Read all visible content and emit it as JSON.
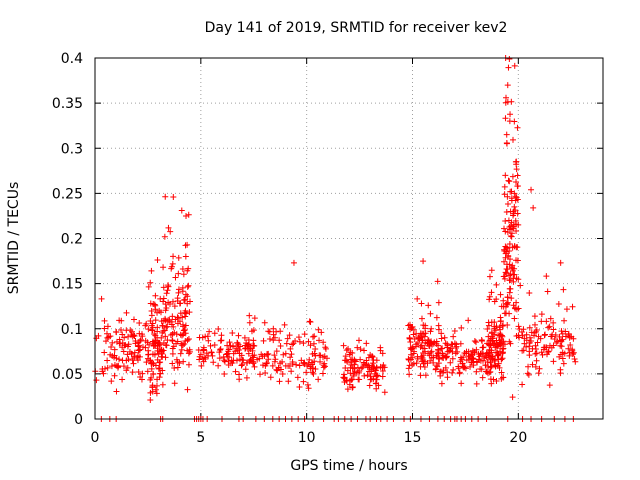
{
  "chart_data": {
    "type": "scatter",
    "title": "Day 141 of 2019, SRMTID for receiver kev2",
    "xlabel": "GPS time / hours",
    "ylabel": "SRMTID / TECUs",
    "xlim": [
      0,
      24
    ],
    "ylim": [
      0,
      0.4
    ],
    "x_ticks": [
      "0",
      "5",
      "10",
      "15",
      "20"
    ],
    "y_ticks": [
      "0",
      "0.05",
      "0.1",
      "0.15",
      "0.2",
      "0.25",
      "0.3",
      "0.35",
      "0.4"
    ],
    "grid": true,
    "marker": "plus",
    "series_color": "#ff0000",
    "segments": [
      {
        "x_start": 0.0,
        "x_end": 2.6,
        "base": 0.075,
        "spread": 0.035,
        "density": 120
      },
      {
        "x_start": 2.6,
        "x_end": 3.2,
        "base": 0.08,
        "spread": 0.05,
        "density": 90
      },
      {
        "x_start": 3.2,
        "x_end": 4.5,
        "base": 0.11,
        "spread": 0.07,
        "density": 130
      },
      {
        "x_start": 4.9,
        "x_end": 7.6,
        "base": 0.07,
        "spread": 0.025,
        "density": 120
      },
      {
        "x_start": 7.6,
        "x_end": 11.0,
        "base": 0.068,
        "spread": 0.03,
        "density": 120
      },
      {
        "x_start": 11.7,
        "x_end": 13.7,
        "base": 0.055,
        "spread": 0.022,
        "density": 110
      },
      {
        "x_start": 14.8,
        "x_end": 16.3,
        "base": 0.078,
        "spread": 0.03,
        "density": 120
      },
      {
        "x_start": 16.3,
        "x_end": 18.5,
        "base": 0.07,
        "spread": 0.025,
        "density": 110
      },
      {
        "x_start": 18.5,
        "x_end": 19.3,
        "base": 0.08,
        "spread": 0.04,
        "density": 120
      },
      {
        "x_start": 19.3,
        "x_end": 20.0,
        "base": 0.2,
        "spread": 0.12,
        "density": 140
      },
      {
        "x_start": 20.0,
        "x_end": 22.7,
        "base": 0.08,
        "spread": 0.035,
        "density": 120
      }
    ],
    "peaks": [
      {
        "x": 3.3,
        "y": 0.202
      },
      {
        "x": 3.7,
        "y": 0.246
      },
      {
        "x": 4.1,
        "y": 0.231
      },
      {
        "x": 4.3,
        "y": 0.225
      },
      {
        "x": 9.4,
        "y": 0.173
      },
      {
        "x": 15.5,
        "y": 0.175
      },
      {
        "x": 19.4,
        "y": 0.4
      },
      {
        "x": 19.5,
        "y": 0.37
      },
      {
        "x": 19.6,
        "y": 0.33
      },
      {
        "x": 20.6,
        "y": 0.254
      },
      {
        "x": 20.7,
        "y": 0.234
      },
      {
        "x": 22.0,
        "y": 0.173
      }
    ],
    "zero_points_x": [
      0.3,
      0.7,
      1.0,
      3.1,
      3.2,
      4.7,
      4.8,
      4.9,
      5.0,
      5.1,
      5.3,
      6.0,
      6.8,
      7.0,
      7.6,
      8.0,
      8.4,
      8.7,
      9.0,
      9.3,
      9.6,
      9.9,
      10.3,
      10.8,
      11.3,
      11.5,
      11.8,
      12.1,
      12.4,
      12.8,
      13.0,
      13.3,
      13.5,
      13.8,
      14.1,
      14.6,
      14.9,
      15.4,
      15.8,
      16.2,
      16.5,
      16.8,
      17.0,
      17.1,
      17.3,
      17.5,
      17.8,
      18.1,
      18.5,
      19.5,
      20.2,
      20.6,
      21.1,
      21.7,
      22.2,
      22.6
    ]
  }
}
